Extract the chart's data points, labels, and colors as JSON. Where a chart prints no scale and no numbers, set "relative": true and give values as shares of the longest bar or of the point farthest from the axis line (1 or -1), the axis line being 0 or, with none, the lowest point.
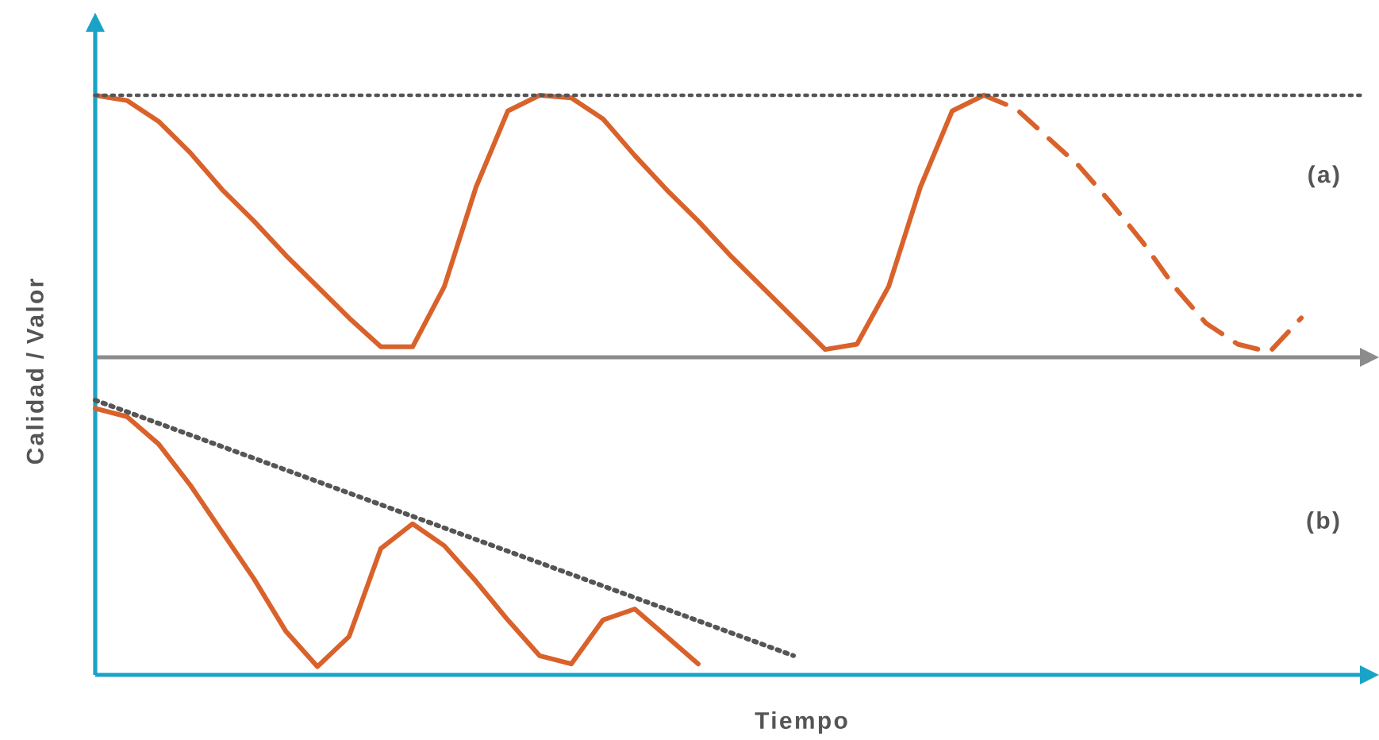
{
  "chart_data": [
    {
      "type": "line",
      "relative": true,
      "ylabel": "Calidad / Valor",
      "annotations": [
        "(a)"
      ],
      "categories": [
        null,
        null,
        null,
        null,
        null,
        null,
        null,
        null,
        null,
        null,
        null,
        null,
        null,
        null,
        null,
        null,
        null,
        null,
        null,
        null,
        null,
        null,
        null,
        null,
        null,
        null,
        null,
        null,
        null,
        null,
        null,
        null,
        null,
        null,
        null,
        null,
        null,
        null,
        null
      ],
      "series": [
        {
          "color": "#d9622b",
          "line_style": "solid",
          "values": [
            1.0,
            0.98,
            0.9,
            0.78,
            0.64,
            0.52,
            0.39,
            0.27,
            0.15,
            0.04,
            0.04,
            0.27,
            0.65,
            0.94,
            1.0,
            0.99,
            0.91,
            0.77,
            0.64,
            0.52,
            0.39,
            0.27,
            0.15,
            0.03,
            0.05,
            0.27,
            0.65,
            0.94,
            1.0,
            null,
            null,
            null,
            null,
            null,
            null,
            null,
            null,
            null,
            null
          ]
        },
        {
          "color": "#d9622b",
          "line_style": "dashed",
          "values": [
            null,
            null,
            null,
            null,
            null,
            null,
            null,
            null,
            null,
            null,
            null,
            null,
            null,
            null,
            null,
            null,
            null,
            null,
            null,
            null,
            null,
            null,
            null,
            null,
            null,
            null,
            null,
            null,
            1.0,
            0.95,
            0.84,
            0.73,
            0.59,
            0.44,
            0.27,
            0.13,
            0.05,
            0.02,
            0.15
          ]
        }
      ],
      "ref_lines": [
        {
          "axis": "y",
          "value": 1.0,
          "color": "#555555",
          "line_style": "dotted"
        }
      ]
    },
    {
      "type": "line",
      "relative": true,
      "xlabel": "Tiempo",
      "annotations": [
        "(b)"
      ],
      "categories": [
        null,
        null,
        null,
        null,
        null,
        null,
        null,
        null,
        null,
        null,
        null,
        null,
        null,
        null,
        null,
        null,
        null,
        null,
        null,
        null,
        null,
        null,
        null,
        null,
        null,
        null,
        null,
        null,
        null,
        null,
        null,
        null,
        null,
        null,
        null,
        null,
        null,
        null,
        null
      ],
      "series": [
        {
          "color": "#d9622b",
          "line_style": "solid",
          "values": [
            0.97,
            0.94,
            0.84,
            0.69,
            0.52,
            0.35,
            0.16,
            0.03,
            0.14,
            0.46,
            0.55,
            0.47,
            0.34,
            0.2,
            0.07,
            0.04,
            0.2,
            0.24,
            0.14,
            0.04,
            null,
            null,
            null,
            null,
            null,
            null,
            null,
            null,
            null,
            null,
            null,
            null,
            null,
            null,
            null,
            null,
            null,
            null,
            null
          ]
        },
        {
          "color": "#555555",
          "line_style": "dotted",
          "values": [
            1.0,
            null,
            null,
            null,
            null,
            null,
            null,
            null,
            null,
            null,
            null,
            null,
            null,
            null,
            null,
            null,
            null,
            null,
            null,
            null,
            null,
            null,
            0.07,
            null,
            null,
            null,
            null,
            null,
            null,
            null,
            null,
            null,
            null,
            null,
            null,
            null,
            null,
            null,
            null
          ]
        }
      ]
    }
  ]
}
